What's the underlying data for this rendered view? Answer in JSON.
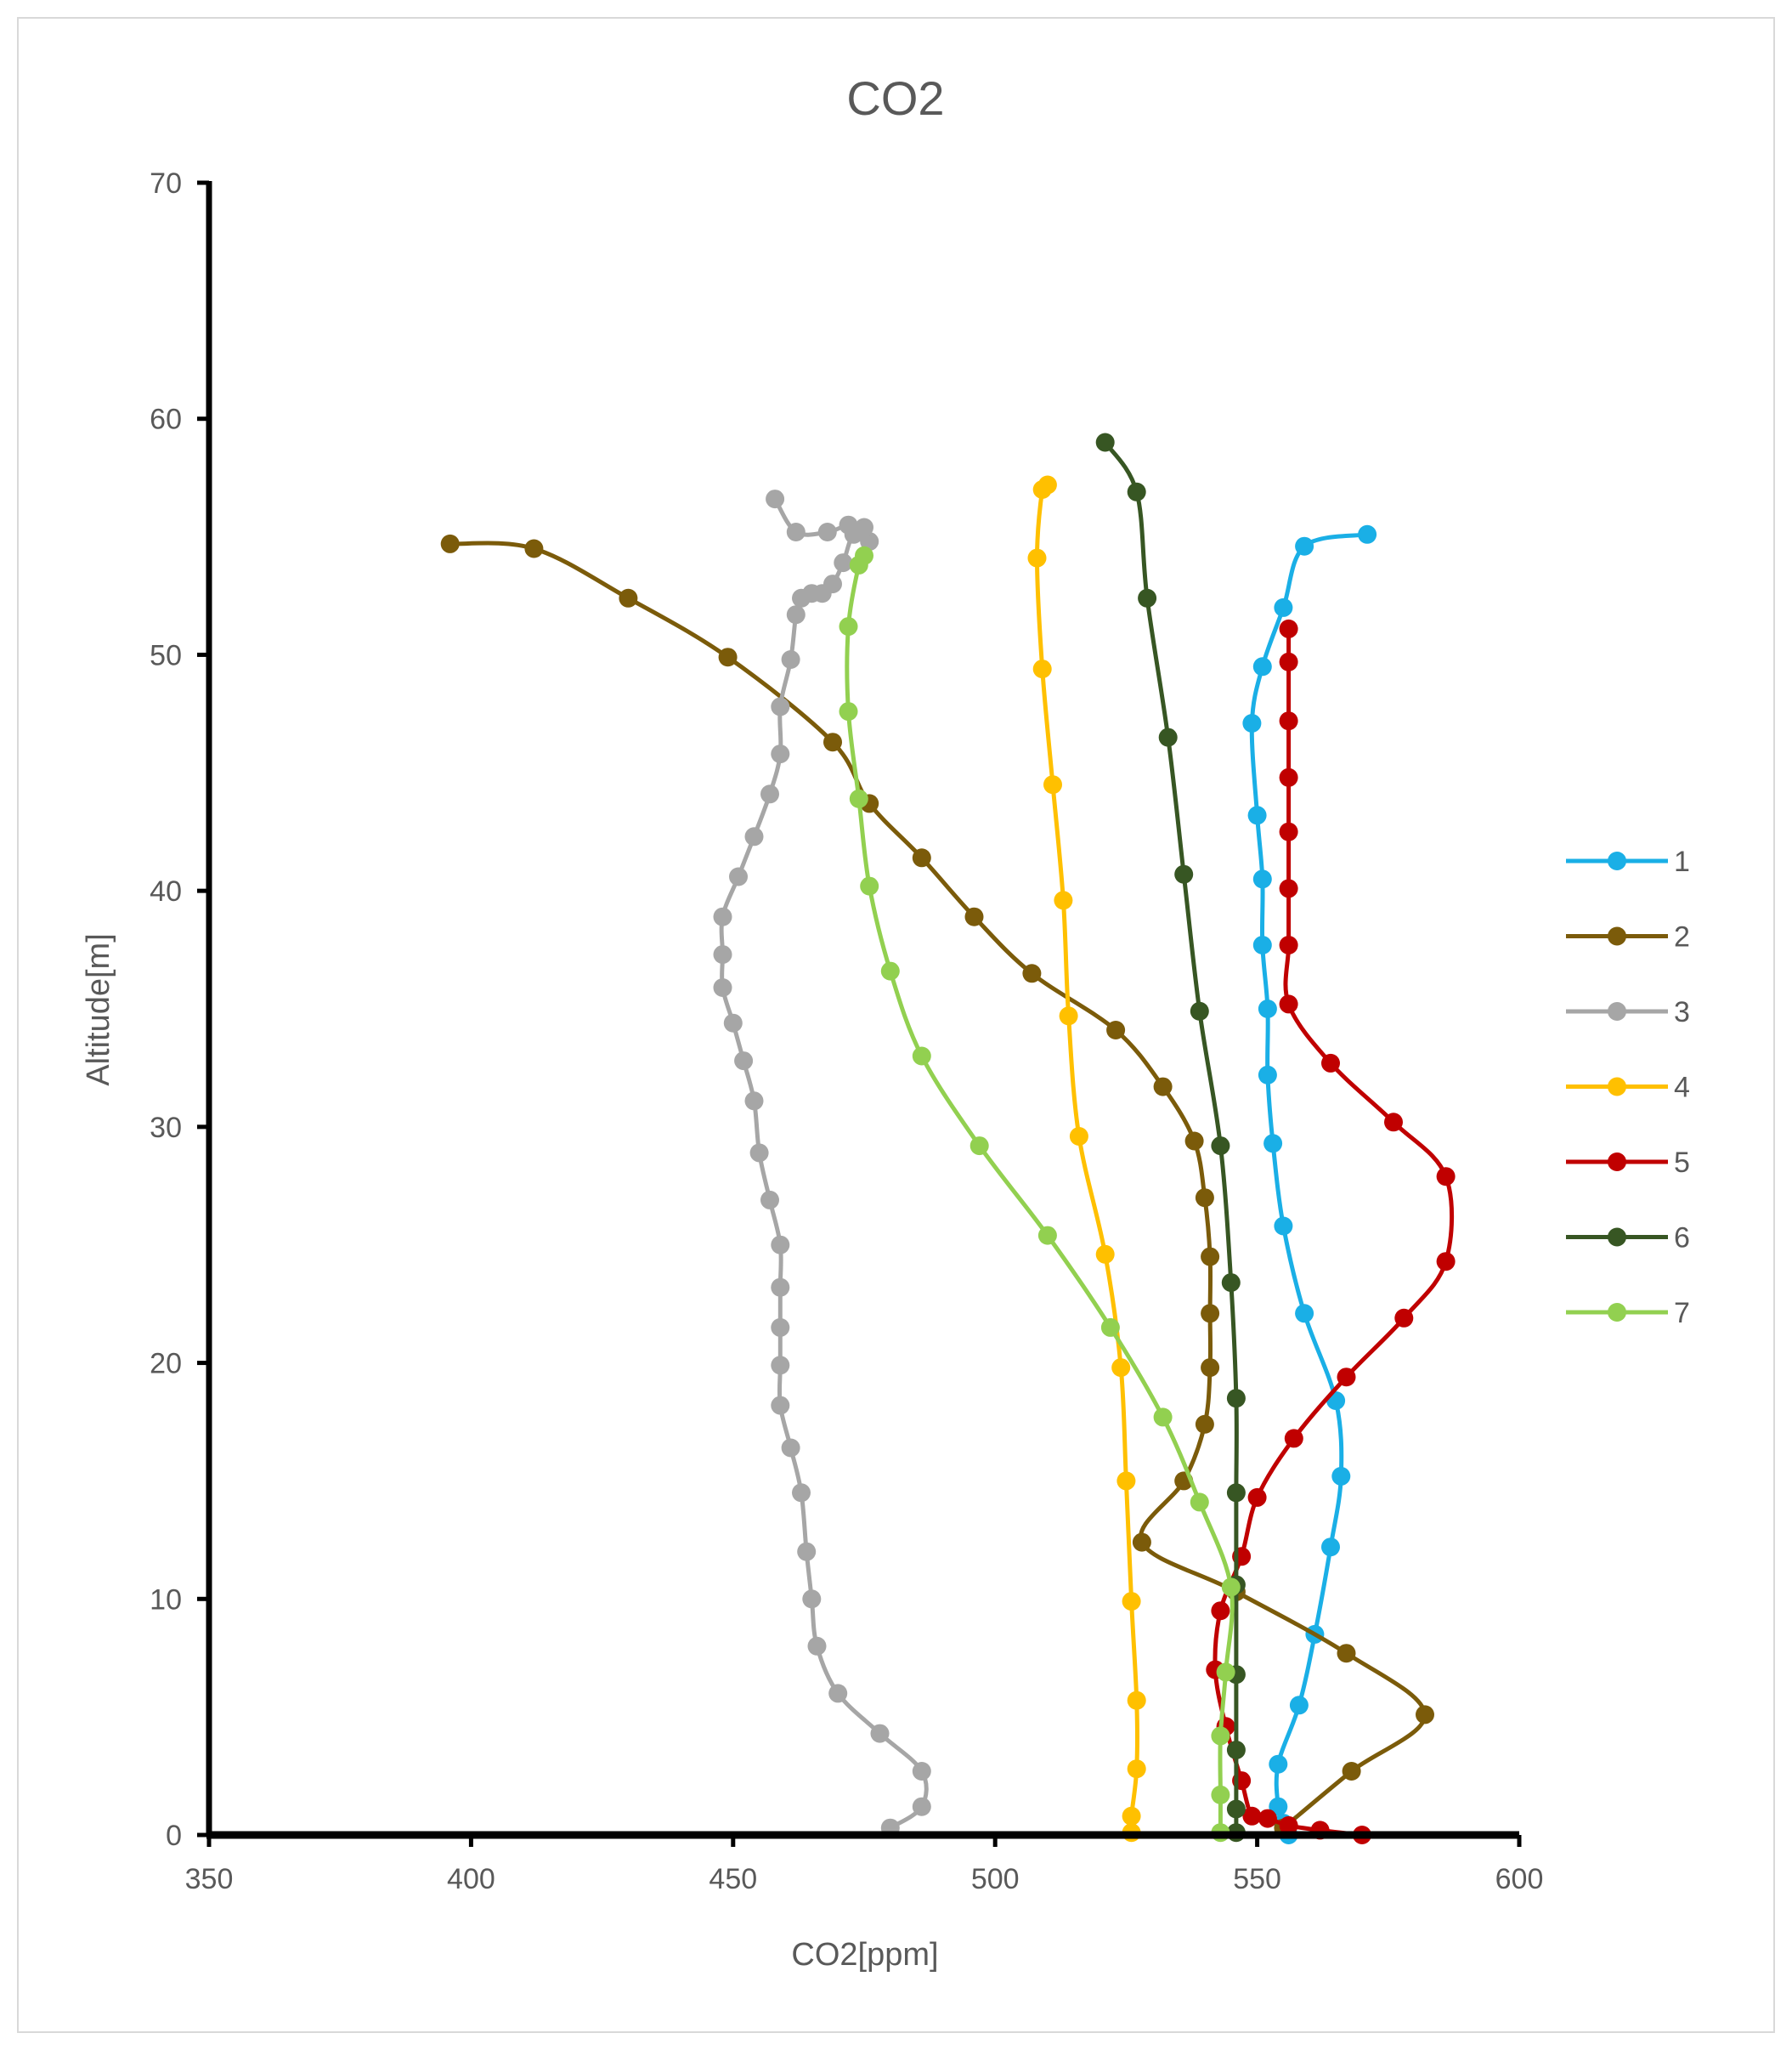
{
  "chart_data": {
    "type": "line",
    "title": "CO2",
    "xlabel": "CO2[ppm]",
    "ylabel": "Altitude[m]",
    "xlim": [
      350,
      600
    ],
    "ylim": [
      0,
      70
    ],
    "xticks": [
      "350",
      "400",
      "450",
      "500",
      "550",
      "600"
    ],
    "yticks": [
      "0",
      "10",
      "20",
      "30",
      "40",
      "50",
      "60",
      "70"
    ],
    "grid": false,
    "legend_position": "right",
    "series": [
      {
        "name": "1",
        "color": "#1AAFE6",
        "points": [
          [
            556,
            0
          ],
          [
            555,
            0.5
          ],
          [
            554,
            1.2
          ],
          [
            554,
            3
          ],
          [
            558,
            5.5
          ],
          [
            561,
            8.5
          ],
          [
            564,
            12.2
          ],
          [
            566,
            15.2
          ],
          [
            565,
            18.4
          ],
          [
            559,
            22.1
          ],
          [
            555,
            25.8
          ],
          [
            553,
            29.3
          ],
          [
            552,
            32.2
          ],
          [
            552,
            35
          ],
          [
            551,
            37.7
          ],
          [
            551,
            40.5
          ],
          [
            550,
            43.2
          ],
          [
            549,
            47.1
          ],
          [
            551,
            49.5
          ],
          [
            555,
            52
          ],
          [
            559,
            54.6
          ],
          [
            571,
            55.1
          ]
        ]
      },
      {
        "name": "2",
        "color": "#7B5B0A",
        "points": [
          [
            555,
            0.3
          ],
          [
            568,
            2.7
          ],
          [
            582,
            5.1
          ],
          [
            567,
            7.7
          ],
          [
            546,
            10.3
          ],
          [
            528,
            12.4
          ],
          [
            536,
            15
          ],
          [
            540,
            17.4
          ],
          [
            541,
            19.8
          ],
          [
            541,
            22.1
          ],
          [
            541,
            24.5
          ],
          [
            540,
            27
          ],
          [
            538,
            29.4
          ],
          [
            532,
            31.7
          ],
          [
            523,
            34.1
          ],
          [
            507,
            36.5
          ],
          [
            496,
            38.9
          ],
          [
            486,
            41.4
          ],
          [
            476,
            43.7
          ],
          [
            469,
            46.3
          ],
          [
            449,
            49.9
          ],
          [
            430,
            52.4
          ],
          [
            412,
            54.5
          ],
          [
            396,
            54.7
          ]
        ]
      },
      {
        "name": "3",
        "color": "#A6A6A6",
        "points": [
          [
            480,
            0.3
          ],
          [
            486,
            1.2
          ],
          [
            486,
            2.7
          ],
          [
            478,
            4.3
          ],
          [
            470,
            6
          ],
          [
            466,
            8
          ],
          [
            465,
            10
          ],
          [
            464,
            12
          ],
          [
            463,
            14.5
          ],
          [
            461,
            16.4
          ],
          [
            459,
            18.2
          ],
          [
            459,
            19.9
          ],
          [
            459,
            21.5
          ],
          [
            459,
            23.2
          ],
          [
            459,
            25
          ],
          [
            457,
            26.9
          ],
          [
            455,
            28.9
          ],
          [
            454,
            31.1
          ],
          [
            452,
            32.8
          ],
          [
            450,
            34.4
          ],
          [
            448,
            35.9
          ],
          [
            448,
            37.3
          ],
          [
            448,
            38.9
          ],
          [
            451,
            40.6
          ],
          [
            454,
            42.3
          ],
          [
            457,
            44.1
          ],
          [
            459,
            45.8
          ],
          [
            459,
            47.8
          ],
          [
            461,
            49.8
          ],
          [
            462,
            51.7
          ],
          [
            463,
            52.4
          ],
          [
            465,
            52.6
          ],
          [
            467,
            52.6
          ],
          [
            469,
            53
          ],
          [
            471,
            53.9
          ],
          [
            473,
            55.1
          ],
          [
            476,
            54.8
          ],
          [
            475,
            55.4
          ],
          [
            472,
            55.5
          ],
          [
            468,
            55.2
          ],
          [
            462,
            55.2
          ],
          [
            458,
            56.6
          ]
        ]
      },
      {
        "name": "4",
        "color": "#FFC000",
        "points": [
          [
            526,
            0.1
          ],
          [
            526,
            0.8
          ],
          [
            527,
            2.8
          ],
          [
            527,
            5.7
          ],
          [
            526,
            9.9
          ],
          [
            525,
            15
          ],
          [
            524,
            19.8
          ],
          [
            521,
            24.6
          ],
          [
            516,
            29.6
          ],
          [
            514,
            34.7
          ],
          [
            513,
            39.6
          ],
          [
            511,
            44.5
          ],
          [
            509,
            49.4
          ],
          [
            508,
            54.1
          ],
          [
            509,
            57
          ],
          [
            510,
            57.2
          ]
        ]
      },
      {
        "name": "5",
        "color": "#C00000",
        "points": [
          [
            570,
            0
          ],
          [
            562,
            0.2
          ],
          [
            556,
            0.4
          ],
          [
            552,
            0.7
          ],
          [
            549,
            0.8
          ],
          [
            547,
            2.3
          ],
          [
            544,
            4.6
          ],
          [
            542,
            7
          ],
          [
            543,
            9.5
          ],
          [
            547,
            11.8
          ],
          [
            550,
            14.3
          ],
          [
            557,
            16.8
          ],
          [
            567,
            19.4
          ],
          [
            578,
            21.9
          ],
          [
            586,
            24.3
          ],
          [
            586,
            27.9
          ],
          [
            576,
            30.2
          ],
          [
            564,
            32.7
          ],
          [
            556,
            35.2
          ],
          [
            556,
            37.7
          ],
          [
            556,
            40.1
          ],
          [
            556,
            42.5
          ],
          [
            556,
            44.8
          ],
          [
            556,
            47.2
          ],
          [
            556,
            49.7
          ],
          [
            556,
            51.1
          ]
        ]
      },
      {
        "name": "6",
        "color": "#375623",
        "points": [
          [
            546,
            0.1
          ],
          [
            546,
            1.1
          ],
          [
            546,
            3.6
          ],
          [
            546,
            6.8
          ],
          [
            546,
            10.6
          ],
          [
            546,
            14.5
          ],
          [
            546,
            18.5
          ],
          [
            545,
            23.4
          ],
          [
            543,
            29.2
          ],
          [
            539,
            34.9
          ],
          [
            536,
            40.7
          ],
          [
            533,
            46.5
          ],
          [
            529,
            52.4
          ],
          [
            527,
            56.9
          ],
          [
            521,
            59
          ]
        ]
      },
      {
        "name": "7",
        "color": "#92D050",
        "points": [
          [
            543,
            0.1
          ],
          [
            543,
            1.7
          ],
          [
            543,
            4.2
          ],
          [
            544,
            6.9
          ],
          [
            545,
            10.5
          ],
          [
            539,
            14.1
          ],
          [
            532,
            17.7
          ],
          [
            522,
            21.5
          ],
          [
            510,
            25.4
          ],
          [
            497,
            29.2
          ],
          [
            486,
            33
          ],
          [
            480,
            36.6
          ],
          [
            476,
            40.2
          ],
          [
            474,
            43.9
          ],
          [
            472,
            47.6
          ],
          [
            472,
            51.2
          ],
          [
            474,
            53.8
          ],
          [
            475,
            54.2
          ]
        ]
      }
    ]
  }
}
